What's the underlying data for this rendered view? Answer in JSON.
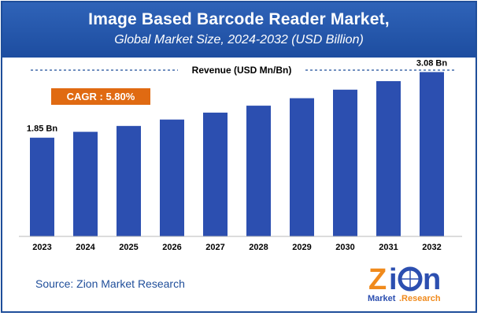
{
  "header": {
    "title": "Image Based Barcode Reader Market,",
    "subtitle": "Global Market Size, 2024-2032 (USD Billion)"
  },
  "legend_label": "Revenue (USD Mn/Bn)",
  "cagr_label": "CAGR : 5.80%",
  "source": "Source: Zion Market Research",
  "logo_text": "Zion Market.Research",
  "colors": {
    "header": "#1f4e9a",
    "bar": "#2c4fb0",
    "cagr": "#e06a12",
    "source": "#1f4e9a"
  },
  "chart_data": {
    "type": "bar",
    "categories": [
      "2023",
      "2024",
      "2025",
      "2026",
      "2027",
      "2028",
      "2029",
      "2030",
      "2031",
      "2032"
    ],
    "values": [
      1.85,
      1.96,
      2.07,
      2.19,
      2.32,
      2.45,
      2.59,
      2.75,
      2.91,
      3.08
    ],
    "data_labels": [
      "1.85 Bn",
      "",
      "",
      "",
      "",
      "",
      "",
      "",
      "",
      "3.08 Bn"
    ],
    "ylim": [
      0,
      3.5
    ],
    "grid": false,
    "legend_position": "top-center"
  }
}
